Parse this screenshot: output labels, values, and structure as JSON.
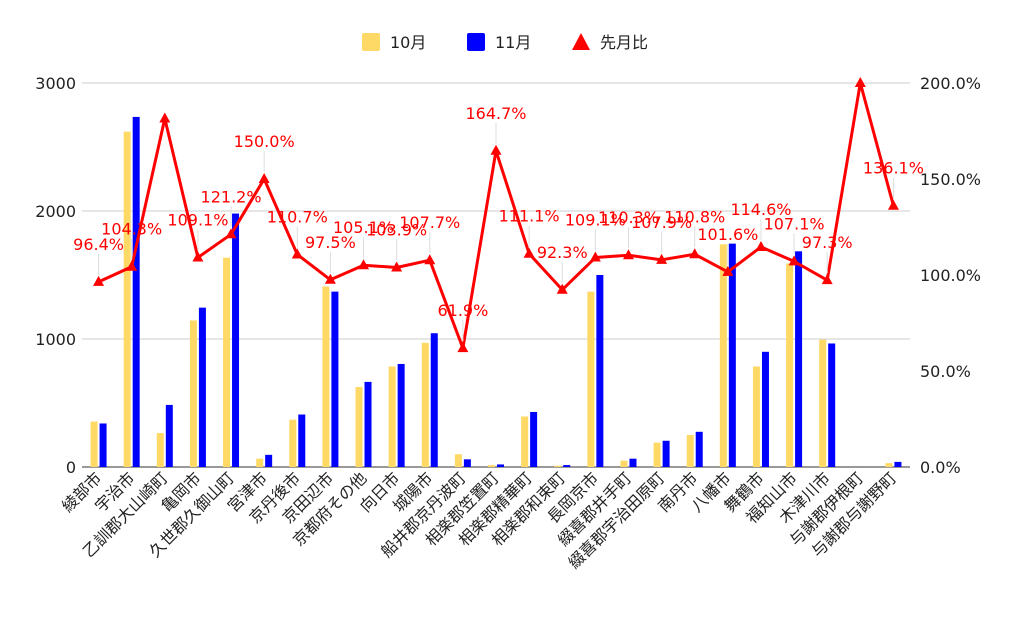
{
  "chart_data": {
    "type": "bar",
    "categories": [
      "綾部市",
      "宇治市",
      "乙訓郡大山崎町",
      "亀岡市",
      "久世郡久御山町",
      "宮津市",
      "京丹後市",
      "京田辺市",
      "京都府その他",
      "向日市",
      "城陽市",
      "船井郡京丹波町",
      "相楽郡笠置町",
      "相楽郡精華町",
      "相楽郡和束町",
      "長岡京市",
      "綴喜郡井手町",
      "綴喜郡宇治田原町",
      "南丹市",
      "八幡市",
      "舞鶴市",
      "福知山市",
      "木津川市",
      "与謝郡伊根町",
      "与謝郡与謝野町"
    ],
    "series": [
      {
        "name": "10月",
        "axis": "left",
        "color": "#FFD966",
        "values": [
          355,
          2620,
          265,
          1145,
          1635,
          65,
          370,
          1410,
          625,
          785,
          970,
          100,
          15,
          395,
          10,
          1370,
          50,
          190,
          250,
          1740,
          785,
          1590,
          995,
          0,
          30
        ]
      },
      {
        "name": "11月",
        "axis": "left",
        "color": "#0000FF",
        "values": [
          340,
          2735,
          485,
          1245,
          1980,
          95,
          410,
          1370,
          665,
          805,
          1045,
          60,
          20,
          430,
          15,
          1500,
          65,
          205,
          275,
          1745,
          900,
          1685,
          965,
          0,
          40
        ]
      },
      {
        "name": "先月比",
        "axis": "right",
        "type": "line",
        "color": "#FF0000",
        "values": [
          96.4,
          104.3,
          181.5,
          109.1,
          121.2,
          150.0,
          110.7,
          97.5,
          105.1,
          103.9,
          107.7,
          61.9,
          164.7,
          111.1,
          92.3,
          109.1,
          110.3,
          107.9,
          110.8,
          101.6,
          114.6,
          107.1,
          97.3,
          200.0,
          136.1
        ],
        "labels": [
          "96.4%",
          "104.3%",
          "",
          "109.1%",
          "121.2%",
          "150.0%",
          "110.7%",
          "97.5%",
          "105.1%",
          "103.9%",
          "107.7%",
          "61.9%",
          "164.7%",
          "111.1%",
          "92.3%",
          "109.1%",
          "110.3%",
          "107.9%",
          "110.8%",
          "101.6%",
          "114.6%",
          "107.1%",
          "97.3%",
          "",
          "136.1%"
        ]
      }
    ],
    "y_left": {
      "min": 0,
      "max": 3000,
      "ticks": [
        0,
        1000,
        2000,
        3000
      ],
      "tick_labels": [
        "0",
        "1000",
        "2000",
        "3000"
      ]
    },
    "y_right": {
      "min": 0,
      "max": 200,
      "ticks": [
        0,
        50,
        100,
        150,
        200
      ],
      "tick_labels": [
        "0.0%",
        "50.0%",
        "100.0%",
        "150.0%",
        "200.0%"
      ]
    },
    "grid": true,
    "legend_position": "top"
  }
}
